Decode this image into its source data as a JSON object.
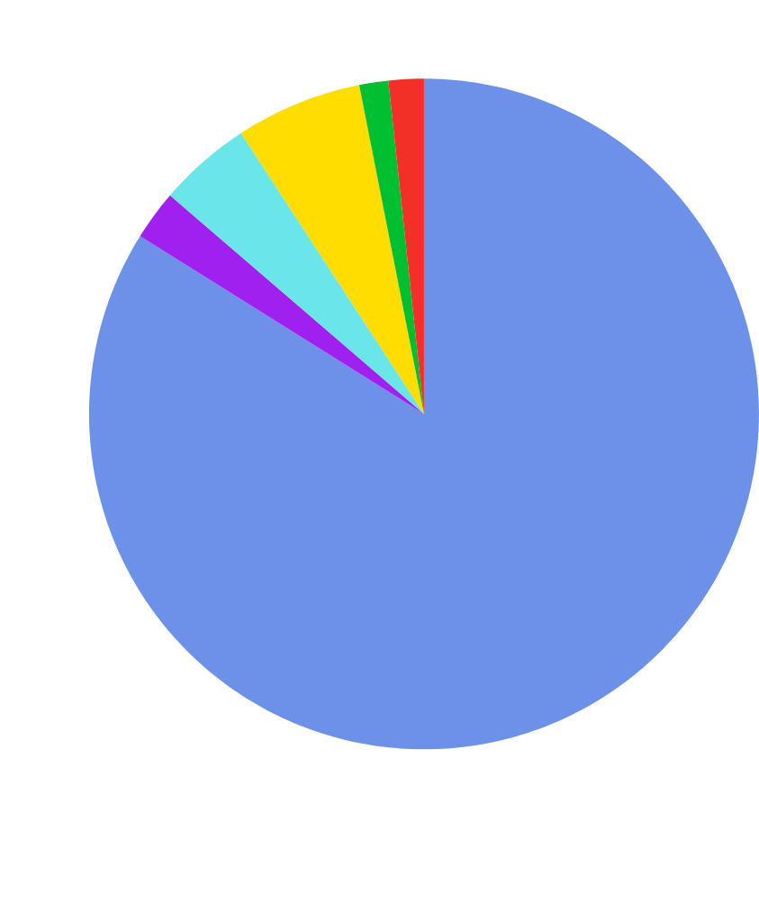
{
  "chart_data": {
    "type": "pie",
    "categories": [
      null,
      null,
      null,
      null,
      null,
      null
    ],
    "values": [
      83.9,
      2.4,
      4.5,
      6.1,
      1.4,
      1.7
    ],
    "colors": [
      "#6d90e8",
      "#a020f0",
      "#6ae6e8",
      "#ffdd00",
      "#00c032",
      "#f23028"
    ]
  }
}
